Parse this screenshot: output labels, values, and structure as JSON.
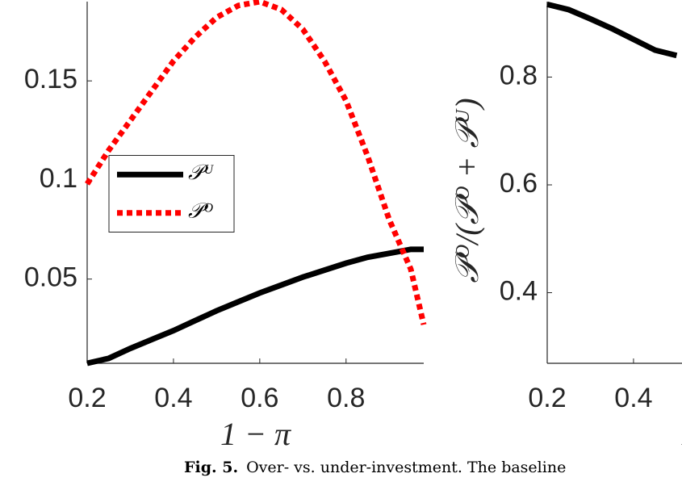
{
  "chart_data": [
    {
      "type": "line",
      "xlabel": "1 − π",
      "xlim": [
        0.2,
        0.98
      ],
      "xticks": [
        0.2,
        0.4,
        0.6,
        0.8
      ],
      "ylim": [
        0.0075,
        0.19
      ],
      "yticks": [
        0.05,
        0.1,
        0.15
      ],
      "legend": "west",
      "x": [
        0.2,
        0.25,
        0.3,
        0.35,
        0.4,
        0.45,
        0.5,
        0.55,
        0.6,
        0.65,
        0.7,
        0.75,
        0.8,
        0.85,
        0.9,
        0.95,
        0.98
      ],
      "series": [
        {
          "name": "𝒫ᵁ",
          "color": "#000000",
          "dash": false,
          "values": [
            0.0075,
            0.01,
            0.015,
            0.0195,
            0.024,
            0.029,
            0.034,
            0.0385,
            0.043,
            0.047,
            0.051,
            0.0545,
            0.058,
            0.061,
            0.063,
            0.065,
            0.065
          ]
        },
        {
          "name": "𝒫ᴼ",
          "color": "#ff0000",
          "dash": true,
          "values": [
            0.098,
            0.115,
            0.13,
            0.145,
            0.16,
            0.172,
            0.182,
            0.188,
            0.19,
            0.186,
            0.176,
            0.16,
            0.14,
            0.112,
            0.08,
            0.055,
            0.027
          ]
        }
      ]
    },
    {
      "type": "line",
      "xlabel": "1 − π",
      "ylabel": "𝒫ᴼ/(𝒫ᴼ + 𝒫ᵁ)",
      "xlim": [
        0.2,
        0.98
      ],
      "xticks": [
        0.2,
        0.4
      ],
      "ylim": [
        0.269,
        0.94
      ],
      "yticks": [
        0.4,
        0.6,
        0.8
      ],
      "x": [
        0.2,
        0.25,
        0.3,
        0.35,
        0.4,
        0.45,
        0.5
      ],
      "series": [
        {
          "color": "#000000",
          "dash": false,
          "values": [
            0.935,
            0.925,
            0.908,
            0.89,
            0.87,
            0.85,
            0.84
          ]
        }
      ]
    }
  ],
  "caption": {
    "label": "Fig. 5.",
    "text": "Over- vs. under-investment. The baseline"
  }
}
